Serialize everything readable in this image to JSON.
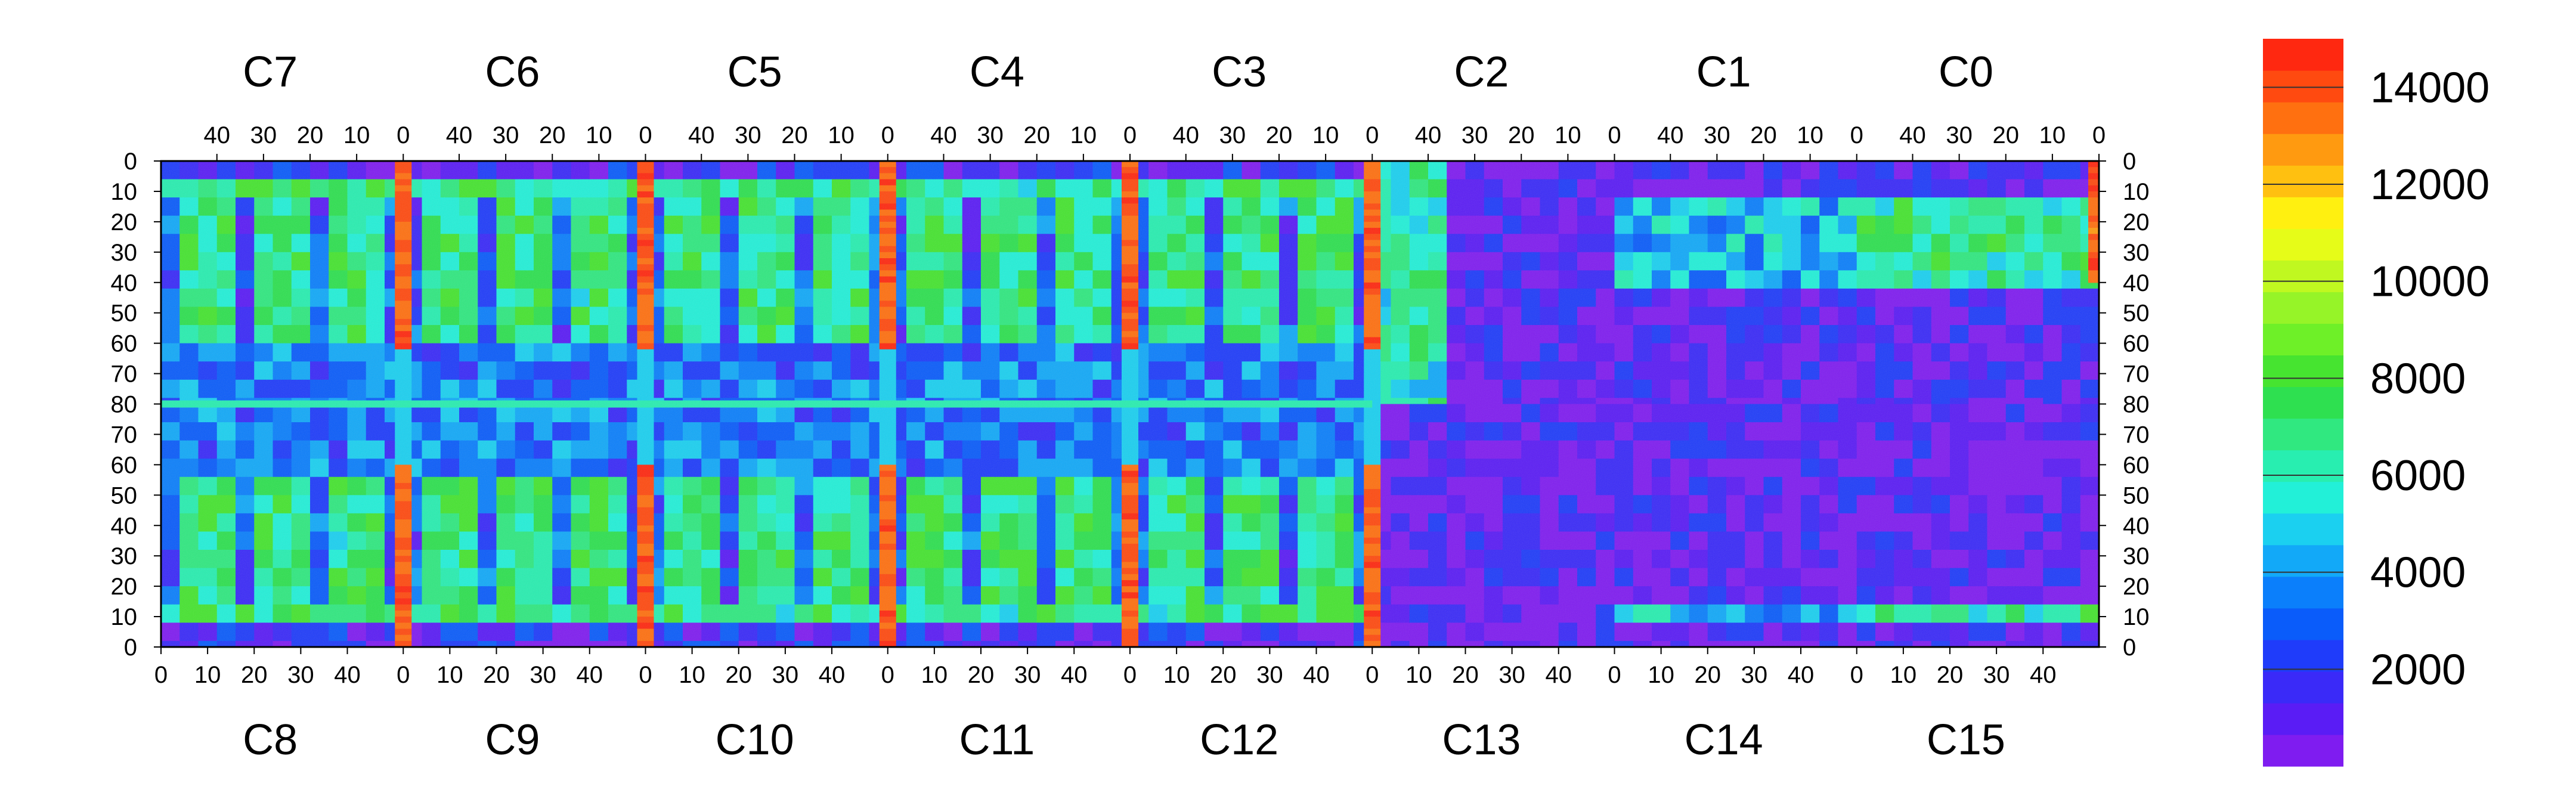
{
  "chart_data": {
    "type": "heatmap",
    "title": "",
    "top_chip_labels": [
      "C7",
      "C6",
      "C5",
      "C4",
      "C3",
      "C2",
      "C1",
      "C0"
    ],
    "bottom_chip_labels": [
      "C8",
      "C9",
      "C10",
      "C11",
      "C12",
      "C13",
      "C14",
      "C15"
    ],
    "chip_columns": 52,
    "row_half": 80,
    "x_ticks_top": [
      40,
      30,
      20,
      10,
      0
    ],
    "x_ticks_bottom": [
      0,
      10,
      20,
      30,
      40
    ],
    "y_ticks_top_half": [
      0,
      10,
      20,
      30,
      40,
      50,
      60,
      70,
      80
    ],
    "y_ticks_bottom_half": [
      70,
      60,
      50,
      40,
      30,
      20,
      10,
      0
    ],
    "colorbar": {
      "min": 0,
      "max": 15000,
      "tick_values": [
        2000,
        4000,
        6000,
        8000,
        10000,
        12000,
        14000
      ],
      "tick_labels": [
        "2000",
        "4000",
        "6000",
        "8000",
        "10000",
        "12000",
        "14000"
      ],
      "colors": [
        "#7f1cf0",
        "#5a1cf5",
        "#3a2af8",
        "#1f3cfa",
        "#0a5cfa",
        "#0b7ffb",
        "#12a9f8",
        "#1bd0f0",
        "#22f0d8",
        "#28eeb0",
        "#30e880",
        "#2ee050",
        "#46e430",
        "#6ef028",
        "#96f428",
        "#c0f820",
        "#e6fc18",
        "#fff010",
        "#ffc010",
        "#ff9a10",
        "#ff7010",
        "#ff4a10",
        "#ff2810"
      ]
    },
    "regions": {
      "inactive_chips": [
        "C13",
        "C14",
        "C15"
      ],
      "hot_columns": [
        "C6/C7 boundary",
        "C5/C6 boundary",
        "C4/C5 boundary",
        "C3/C4 boundary",
        "C2/C3 boundary",
        "C0 edge"
      ]
    }
  }
}
